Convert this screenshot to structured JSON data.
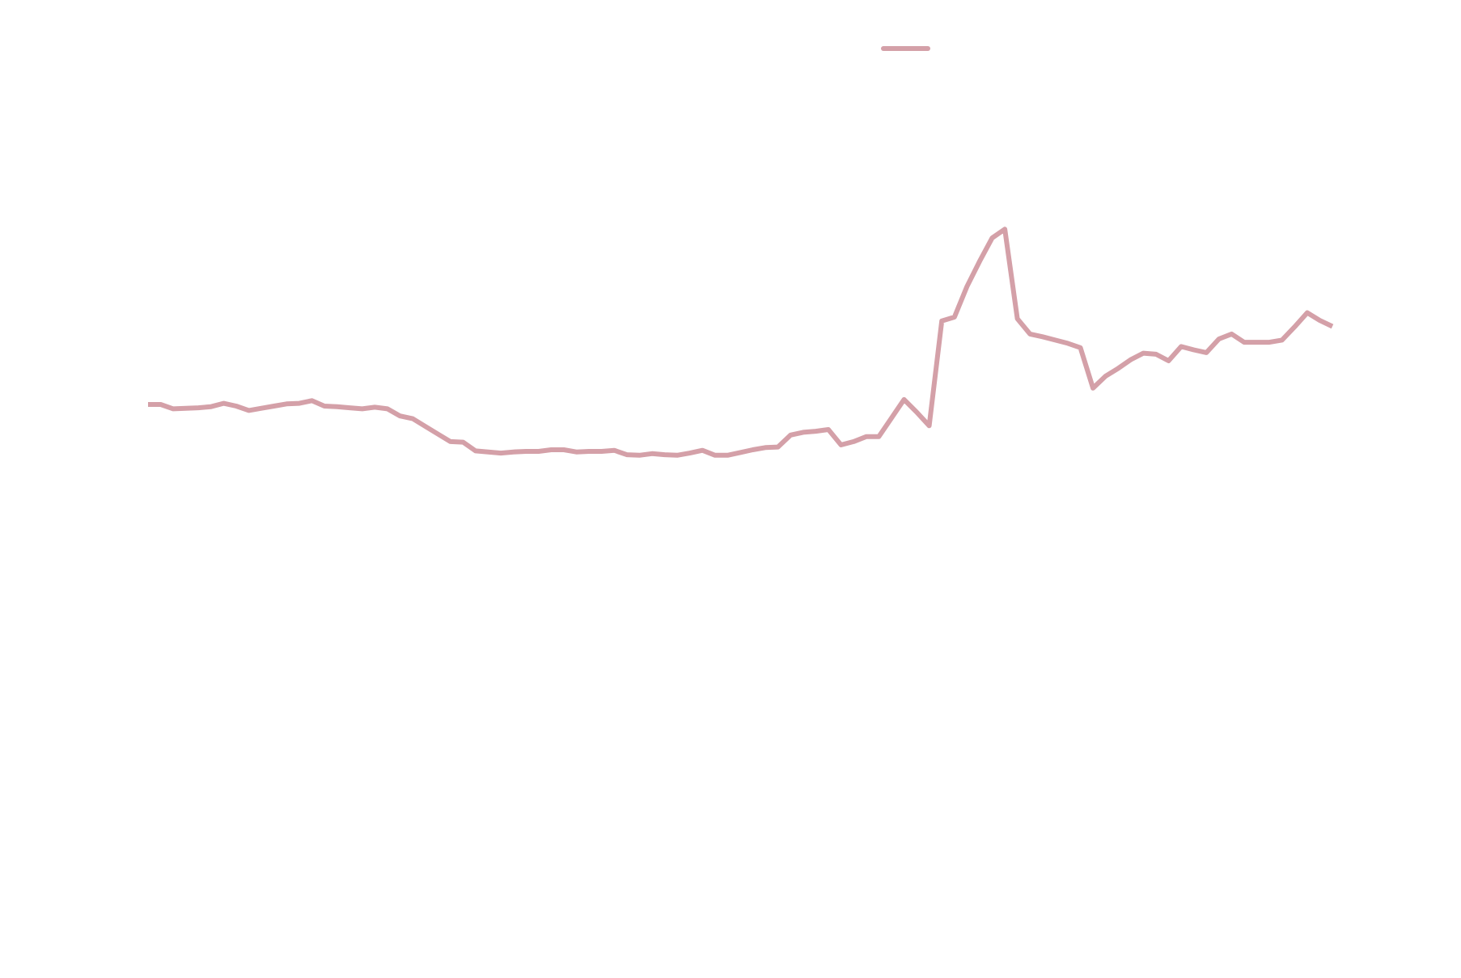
{
  "chart_data": {
    "type": "line",
    "title": "",
    "xlabel": "",
    "ylabel": "",
    "axes_visible": false,
    "grid": false,
    "legend": "top-center",
    "series": [
      {
        "color": "#d4a0a8",
        "values": [
          100,
          100,
          96,
          96.5,
          97,
          98,
          101,
          98.5,
          94.5,
          96.5,
          98.5,
          100.5,
          101,
          103.5,
          98.5,
          98,
          97,
          96,
          97.5,
          96,
          89.5,
          87,
          80,
          73,
          66,
          65.5,
          57.5,
          56.5,
          55.5,
          56.5,
          57,
          57,
          58.5,
          58.5,
          56.5,
          57,
          57,
          58,
          54,
          53.5,
          55,
          54,
          53.5,
          55.5,
          58,
          53.5,
          53.5,
          56,
          58.5,
          60.5,
          61,
          72,
          74.5,
          75.5,
          77,
          63,
          66,
          70.5,
          70.5,
          87.5,
          104.5,
          93,
          80.5,
          176.5,
          180,
          208,
          231,
          252.5,
          260.5,
          178.5,
          164.5,
          162,
          159,
          156,
          152,
          115,
          126,
          133,
          141,
          147,
          146,
          140,
          153,
          150,
          147.5,
          160,
          164.5,
          157,
          157,
          157,
          159,
          171,
          184,
          177,
          171.5
        ]
      }
    ]
  }
}
